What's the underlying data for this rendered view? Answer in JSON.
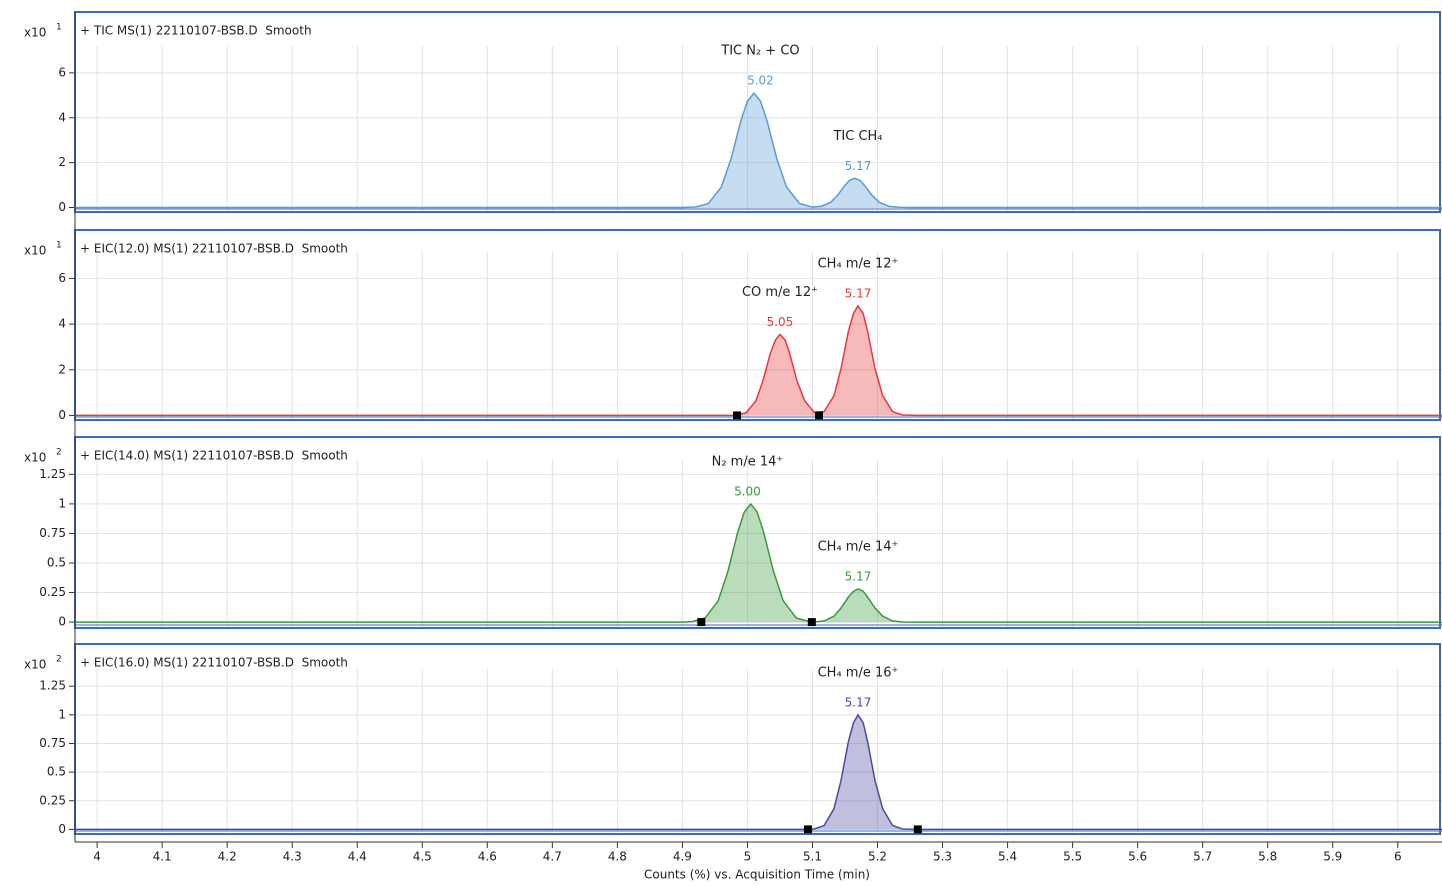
{
  "chart_data": [
    {
      "type": "area",
      "title": "+ TIC MS(1) 22110107-BSB.D  Smooth",
      "y_multiplier": "x10",
      "y_exponent": 1,
      "ylim": [
        -0.2,
        7.2
      ],
      "yticks": [
        0,
        2,
        4,
        6
      ],
      "grid": true,
      "series": [
        {
          "name": "TIC",
          "color": "#5b9bd5",
          "x": [
            3.966,
            4.9,
            4.92,
            4.94,
            4.96,
            4.975,
            4.99,
            5.0,
            5.01,
            5.02,
            5.03,
            5.045,
            5.06,
            5.08,
            5.1,
            5.113,
            5.128,
            5.139,
            5.15,
            5.157,
            5.165,
            5.173,
            5.18,
            5.191,
            5.203,
            5.218,
            5.233,
            5.25,
            6.068
          ],
          "values": [
            0,
            0,
            0.02,
            0.18,
            0.92,
            2.19,
            3.88,
            4.74,
            5.1,
            4.74,
            3.88,
            2.19,
            0.92,
            0.18,
            0.02,
            0.05,
            0.23,
            0.56,
            0.99,
            1.21,
            1.3,
            1.21,
            0.99,
            0.56,
            0.23,
            0.05,
            0.01,
            0,
            0
          ]
        }
      ],
      "peaks": [
        {
          "rt": 5.02,
          "annotation": "TIC N₂ + CO"
        },
        {
          "rt": 5.17,
          "annotation": "TIC CH₄"
        }
      ],
      "integration_marks": []
    },
    {
      "type": "area",
      "title": "+ EIC(12.0) MS(1) 22110107-BSB.D  Smooth",
      "y_multiplier": "x10",
      "y_exponent": 1,
      "ylim": [
        -0.2,
        7.2
      ],
      "yticks": [
        0,
        2,
        4,
        6
      ],
      "grid": true,
      "series": [
        {
          "name": "EIC(12.0)",
          "color": "#e8383d",
          "x": [
            3.966,
            4.97,
            4.983,
            4.998,
            5.013,
            5.024,
            5.035,
            5.043,
            5.05,
            5.058,
            5.065,
            5.076,
            5.088,
            5.103,
            5.118,
            5.133,
            5.144,
            5.155,
            5.163,
            5.17,
            5.178,
            5.185,
            5.196,
            5.208,
            5.223,
            5.238,
            5.26,
            6.068
          ],
          "values": [
            0,
            0,
            0.01,
            0.12,
            0.64,
            1.53,
            2.7,
            3.3,
            3.55,
            3.3,
            2.7,
            1.53,
            0.64,
            0.13,
            0.17,
            0.86,
            2.06,
            3.65,
            4.46,
            4.8,
            4.46,
            3.65,
            2.06,
            0.86,
            0.17,
            0.02,
            0,
            0
          ]
        }
      ],
      "peaks": [
        {
          "rt": 5.05,
          "annotation": "CO m/e 12⁺"
        },
        {
          "rt": 5.17,
          "annotation": "CH₄ m/e 12⁺"
        }
      ],
      "integration_marks": [
        4.984,
        5.11
      ]
    },
    {
      "type": "area",
      "title": "+ EIC(14.0) MS(1) 22110107-BSB.D  Smooth",
      "y_multiplier": "x10",
      "y_exponent": 2,
      "ylim": [
        -0.05,
        1.38
      ],
      "yticks": [
        0,
        0.25,
        0.5,
        0.75,
        1,
        1.25
      ],
      "grid": true,
      "series": [
        {
          "name": "EIC(14.0)",
          "color": "#3a9a3a",
          "x": [
            3.966,
            4.9,
            4.915,
            4.935,
            4.955,
            4.97,
            4.985,
            4.995,
            5.005,
            5.015,
            5.025,
            5.04,
            5.055,
            5.075,
            5.095,
            5.103,
            5.118,
            5.133,
            5.144,
            5.155,
            5.163,
            5.17,
            5.178,
            5.185,
            5.196,
            5.208,
            5.223,
            5.238,
            5.26,
            6.068
          ],
          "values": [
            0,
            0,
            0.004,
            0.035,
            0.18,
            0.43,
            0.76,
            0.93,
            1,
            0.93,
            0.76,
            0.43,
            0.18,
            0.035,
            0.004,
            0.001,
            0.01,
            0.05,
            0.12,
            0.21,
            0.26,
            0.28,
            0.26,
            0.21,
            0.12,
            0.05,
            0.01,
            0.001,
            0,
            0
          ]
        }
      ],
      "peaks": [
        {
          "rt": {
            "value": 5,
            "label": "5.00"
          },
          "annotation": "N₂ m/e 14⁺"
        },
        {
          "rt": 5.17,
          "annotation": "CH₄ m/e 14⁺"
        }
      ],
      "integration_marks": [
        4.929,
        5.099
      ]
    },
    {
      "type": "area",
      "title": "+ EIC(16.0) MS(1) 22110107-BSB.D  Smooth",
      "y_multiplier": "x10",
      "y_exponent": 2,
      "ylim": [
        -0.04,
        1.4
      ],
      "yticks": [
        0,
        0.25,
        0.5,
        0.75,
        1,
        1.25
      ],
      "grid": true,
      "series": [
        {
          "name": "EIC(16.0)",
          "color": "#4a4aa0",
          "x": [
            3.966,
            5.09,
            5.103,
            5.118,
            5.133,
            5.144,
            5.155,
            5.163,
            5.17,
            5.178,
            5.185,
            5.196,
            5.208,
            5.223,
            5.238,
            5.26,
            6.068
          ],
          "values": [
            0,
            0,
            0.004,
            0.035,
            0.18,
            0.43,
            0.76,
            0.93,
            1,
            0.93,
            0.76,
            0.43,
            0.18,
            0.035,
            0.004,
            0,
            0
          ]
        }
      ],
      "peaks": [
        {
          "rt": 5.17,
          "annotation": "CH₄ m/e 16⁺"
        }
      ],
      "integration_marks": [
        5.093,
        5.262
      ],
      "xlim": [
        3.966,
        6.068
      ],
      "xticks": [
        4,
        4.1,
        4.2,
        4.3,
        4.4,
        4.5,
        4.6,
        4.7,
        4.8,
        4.9,
        5,
        5.1,
        5.2,
        5.3,
        5.4,
        5.5,
        5.6,
        5.7,
        5.8,
        5.9,
        6
      ],
      "xlabel": "Counts (%) vs. Acquisition Time (min)"
    }
  ]
}
